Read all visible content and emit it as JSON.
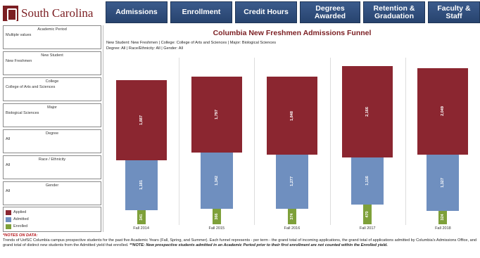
{
  "brand": {
    "name": "South Carolina"
  },
  "nav": [
    {
      "label": "Admissions"
    },
    {
      "label": "Enrollment"
    },
    {
      "label": "Credit Hours"
    },
    {
      "label": "Degrees\nAwarded"
    },
    {
      "label": "Retention &\nGraduation"
    },
    {
      "label": "Faculty & Staff"
    }
  ],
  "filters": [
    {
      "label": "Academic Period",
      "value": "Multiple values"
    },
    {
      "label": "New Student",
      "value": "New Freshmen"
    },
    {
      "label": "College",
      "value": "College of Arts and Sciences"
    },
    {
      "label": "Major",
      "value": "Biological Sciences"
    },
    {
      "label": "Degree",
      "value": "All"
    },
    {
      "label": "Race / Ethnicity",
      "value": "All"
    },
    {
      "label": "Gender",
      "value": "All"
    }
  ],
  "legend": [
    {
      "label": "Applied",
      "color": "#8b2630"
    },
    {
      "label": "Admitted",
      "color": "#6f8fbf"
    },
    {
      "label": "Enrolled",
      "color": "#7ea03a"
    }
  ],
  "chart": {
    "title": "Columbia New Freshmen Admissions Funnel",
    "subtitle_line1": "New Student: New Freshmen  |  College: College of Arts and Sciences  |  Major: Biological Sciences",
    "subtitle_line2": "Degree: All  |  Race/Ethnicity: All  |  Gender: All"
  },
  "chart_data": {
    "type": "bar",
    "categories": [
      "Fall 2014",
      "Fall 2015",
      "Fall 2016",
      "Fall 2017",
      "Fall 2018"
    ],
    "series": [
      {
        "name": "Applied",
        "values": [
          1887,
          1797,
          1848,
          2166,
          2049
        ],
        "labels": [
          "1,887",
          "1,797",
          "1,848",
          "2,166",
          "2,049"
        ]
      },
      {
        "name": "Admitted",
        "values": [
          1181,
          1342,
          1277,
          1116,
          1327
        ],
        "labels": [
          "1,181",
          "1,342",
          "1,277",
          "1,116",
          "1,327"
        ]
      },
      {
        "name": "Enrolled",
        "values": [
          341,
          366,
          374,
          470,
          324
        ],
        "labels": [
          "341",
          "366",
          "374",
          "470",
          "324"
        ]
      }
    ],
    "colors": {
      "Applied": "#8b2630",
      "Admitted": "#6f8fbf",
      "Enrolled": "#7ea03a"
    }
  },
  "notes": {
    "heading": "*NOTES ON DATA:",
    "body": "Trends of UofSC Columbia campus prospective students for the past five Academic Years (Fall, Spring, and Summer). Each funnel represents - per term - the grand total of incoming applications, the grand total of applications admitted by Columbia's Admissions Office, and grand total of distinct new students from the Admitted yield that enrolled.",
    "emphasis": "**NOTE: New prospective students admitted in an Academic Period prior to their first enrollment are not counted within the Enrolled yield."
  }
}
